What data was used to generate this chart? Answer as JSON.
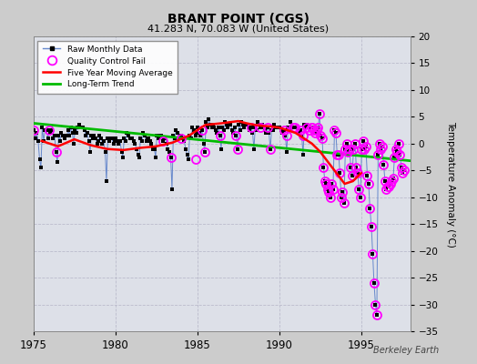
{
  "title": "BRANT POINT (CGS)",
  "subtitle": "41.283 N, 70.083 W (United States)",
  "ylabel": "Temperature Anomaly (°C)",
  "attribution": "Berkeley Earth",
  "xlim": [
    1975,
    1998
  ],
  "ylim": [
    -35,
    20
  ],
  "yticks": [
    -35,
    -30,
    -25,
    -20,
    -15,
    -10,
    -5,
    0,
    5,
    10,
    15,
    20
  ],
  "xticks": [
    1975,
    1980,
    1985,
    1990,
    1995
  ],
  "bg_color": "#e0e0e0",
  "plot_bg": "#e8eaf0",
  "grid_color": "#ffffff",
  "raw_color": "#6688cc",
  "raw_marker_color": "#000000",
  "qc_color": "#ff00ff",
  "mavg_color": "#ff0000",
  "trend_color": "#00bb00",
  "raw_x": [
    1975.04,
    1975.13,
    1975.21,
    1975.29,
    1975.38,
    1975.46,
    1975.54,
    1975.63,
    1975.71,
    1975.79,
    1975.88,
    1975.96,
    1976.04,
    1976.13,
    1976.21,
    1976.29,
    1976.38,
    1976.46,
    1976.54,
    1976.63,
    1976.71,
    1976.79,
    1976.88,
    1976.96,
    1977.04,
    1977.13,
    1977.21,
    1977.29,
    1977.38,
    1977.46,
    1977.54,
    1977.63,
    1977.71,
    1977.79,
    1977.88,
    1977.96,
    1978.04,
    1978.13,
    1978.21,
    1978.29,
    1978.38,
    1978.46,
    1978.54,
    1978.63,
    1978.71,
    1978.79,
    1978.88,
    1978.96,
    1979.04,
    1979.13,
    1979.21,
    1979.29,
    1979.38,
    1979.46,
    1979.54,
    1979.63,
    1979.71,
    1979.79,
    1979.88,
    1979.96,
    1980.04,
    1980.13,
    1980.21,
    1980.29,
    1980.38,
    1980.46,
    1980.54,
    1980.63,
    1980.71,
    1980.79,
    1980.88,
    1980.96,
    1981.04,
    1981.13,
    1981.21,
    1981.29,
    1981.38,
    1981.46,
    1981.54,
    1981.63,
    1981.71,
    1981.79,
    1981.88,
    1981.96,
    1982.04,
    1982.13,
    1982.21,
    1982.29,
    1982.38,
    1982.46,
    1982.54,
    1982.63,
    1982.71,
    1982.79,
    1982.88,
    1982.96,
    1983.04,
    1983.13,
    1983.21,
    1983.29,
    1983.38,
    1983.46,
    1983.54,
    1983.63,
    1983.71,
    1983.79,
    1983.88,
    1983.96,
    1984.04,
    1984.13,
    1984.21,
    1984.29,
    1984.38,
    1984.46,
    1984.54,
    1984.63,
    1984.71,
    1984.79,
    1984.88,
    1984.96,
    1985.04,
    1985.13,
    1985.21,
    1985.29,
    1985.38,
    1985.46,
    1985.54,
    1985.63,
    1985.71,
    1985.79,
    1985.88,
    1985.96,
    1986.04,
    1986.13,
    1986.21,
    1986.29,
    1986.38,
    1986.46,
    1986.54,
    1986.63,
    1986.71,
    1986.79,
    1986.88,
    1986.96,
    1987.04,
    1987.13,
    1987.21,
    1987.29,
    1987.38,
    1987.46,
    1987.54,
    1987.63,
    1987.71,
    1987.79,
    1987.88,
    1987.96,
    1988.04,
    1988.13,
    1988.21,
    1988.29,
    1988.38,
    1988.46,
    1988.54,
    1988.63,
    1988.71,
    1988.79,
    1988.88,
    1988.96,
    1989.04,
    1989.13,
    1989.21,
    1989.29,
    1989.38,
    1989.46,
    1989.54,
    1989.63,
    1989.71,
    1989.79,
    1989.88,
    1989.96,
    1990.04,
    1990.13,
    1990.21,
    1990.29,
    1990.38,
    1990.46,
    1990.54,
    1990.63,
    1990.71,
    1990.79,
    1990.88,
    1990.96,
    1991.04,
    1991.13,
    1991.21,
    1991.29,
    1991.38,
    1991.46,
    1991.54,
    1991.63,
    1991.71,
    1991.79,
    1991.88,
    1991.96,
    1992.04,
    1992.13,
    1992.21,
    1992.29,
    1992.38,
    1992.46,
    1992.54,
    1992.63,
    1992.71,
    1992.79,
    1992.88,
    1992.96,
    1993.04,
    1993.13,
    1993.21,
    1993.29,
    1993.38,
    1993.46,
    1993.54,
    1993.63,
    1993.71,
    1993.79,
    1993.88,
    1993.96,
    1994.04,
    1994.13,
    1994.21,
    1994.29,
    1994.38,
    1994.46,
    1994.54,
    1994.63,
    1994.71,
    1994.79,
    1994.88,
    1994.96,
    1995.04,
    1995.13,
    1995.21,
    1995.29,
    1995.38,
    1995.46,
    1995.54,
    1995.63,
    1995.71,
    1995.79,
    1995.88,
    1995.96,
    1996.04,
    1996.13,
    1996.21,
    1996.29,
    1996.38,
    1996.46,
    1996.54,
    1996.63,
    1996.71,
    1996.79,
    1996.88,
    1996.96,
    1997.04,
    1997.13,
    1997.21,
    1997.29,
    1997.38,
    1997.46,
    1997.54,
    1997.63
  ],
  "raw_y": [
    2.5,
    1.0,
    2.0,
    0.5,
    -3.0,
    -4.5,
    3.0,
    0.5,
    2.5,
    2.5,
    1.0,
    2.5,
    2.0,
    2.5,
    1.0,
    1.5,
    -1.5,
    -3.5,
    1.5,
    0.5,
    2.0,
    1.5,
    1.0,
    1.5,
    1.5,
    2.5,
    1.5,
    3.0,
    2.0,
    0.0,
    2.5,
    2.0,
    3.0,
    3.5,
    3.0,
    3.0,
    3.0,
    2.5,
    1.5,
    2.0,
    0.5,
    -1.5,
    1.5,
    1.0,
    1.5,
    1.0,
    0.0,
    0.5,
    1.5,
    1.0,
    0.0,
    0.5,
    -1.5,
    -7.0,
    1.0,
    0.5,
    1.0,
    1.0,
    0.0,
    0.5,
    1.0,
    0.5,
    0.0,
    0.5,
    -1.5,
    -2.5,
    1.0,
    0.5,
    2.0,
    1.5,
    1.0,
    1.0,
    1.0,
    0.5,
    0.0,
    -1.0,
    -2.0,
    -2.5,
    1.0,
    0.5,
    2.0,
    1.5,
    0.5,
    1.0,
    1.0,
    0.5,
    0.0,
    -1.0,
    -1.0,
    -2.5,
    1.5,
    1.0,
    1.5,
    1.5,
    0.5,
    1.0,
    1.0,
    0.0,
    -1.0,
    -1.5,
    -2.5,
    -8.5,
    1.5,
    1.0,
    2.5,
    2.0,
    1.0,
    1.5,
    1.5,
    1.0,
    0.5,
    -1.0,
    -2.0,
    -3.0,
    1.5,
    1.0,
    3.0,
    2.5,
    1.5,
    2.0,
    3.0,
    2.0,
    1.5,
    2.5,
    0.0,
    -1.5,
    4.0,
    3.0,
    4.5,
    3.5,
    3.0,
    3.5,
    3.0,
    2.5,
    2.0,
    3.0,
    1.5,
    -1.0,
    3.0,
    2.5,
    4.0,
    3.5,
    3.0,
    3.5,
    3.5,
    2.5,
    2.0,
    3.0,
    1.5,
    -1.0,
    3.5,
    2.5,
    4.0,
    3.5,
    3.0,
    3.5,
    3.5,
    3.0,
    2.5,
    3.0,
    2.0,
    -1.0,
    3.0,
    2.5,
    4.0,
    3.5,
    3.0,
    3.5,
    3.0,
    2.5,
    2.0,
    3.0,
    2.0,
    -1.0,
    2.5,
    2.5,
    3.5,
    3.0,
    3.0,
    3.0,
    3.0,
    2.5,
    2.0,
    2.5,
    1.5,
    -1.5,
    3.0,
    2.5,
    4.0,
    3.0,
    3.0,
    3.0,
    3.0,
    2.5,
    2.0,
    2.5,
    1.5,
    -2.0,
    3.5,
    3.0,
    3.5,
    3.0,
    2.5,
    3.0,
    3.0,
    2.5,
    2.0,
    2.5,
    3.0,
    5.5,
    1.5,
    1.0,
    -4.5,
    -7.0,
    -7.5,
    -8.5,
    -9.0,
    -10.0,
    -7.5,
    -8.5,
    2.5,
    2.0,
    -2.0,
    -2.0,
    -5.5,
    -10.0,
    -9.0,
    -11.0,
    -1.0,
    0.0,
    -1.5,
    -1.0,
    -4.5,
    -6.0,
    -1.0,
    0.0,
    -4.5,
    -5.5,
    -8.5,
    -10.0,
    -1.0,
    0.5,
    -1.0,
    -0.5,
    -6.0,
    -7.5,
    -12.0,
    -15.5,
    -20.5,
    -26.0,
    -30.0,
    -32.0,
    -2.0,
    0.0,
    -1.0,
    -0.5,
    -4.0,
    -7.0,
    -8.5,
    -8.0,
    -8.0,
    -7.5,
    -7.0,
    -6.5,
    -2.5,
    -1.0,
    -1.5,
    0.0,
    -2.0,
    -4.5,
    -5.5,
    -5.0
  ],
  "qc_x": [
    1975.04,
    1975.96,
    1976.38,
    1982.88,
    1983.38,
    1984.04,
    1984.88,
    1985.29,
    1985.46,
    1986.38,
    1987.38,
    1987.46,
    1988.29,
    1988.88,
    1989.29,
    1989.46,
    1990.29,
    1990.46,
    1990.88,
    1990.96,
    1991.29,
    1991.46,
    1991.71,
    1991.88,
    1991.96,
    1992.04,
    1992.13,
    1992.21,
    1992.29,
    1992.38,
    1992.46,
    1992.54,
    1992.63,
    1992.71,
    1992.79,
    1992.88,
    1992.96,
    1993.04,
    1993.13,
    1993.21,
    1993.29,
    1993.38,
    1993.46,
    1993.54,
    1993.63,
    1993.71,
    1993.79,
    1993.88,
    1993.96,
    1994.04,
    1994.13,
    1994.21,
    1994.29,
    1994.38,
    1994.46,
    1994.54,
    1994.63,
    1994.71,
    1994.79,
    1994.88,
    1994.96,
    1995.04,
    1995.13,
    1995.21,
    1995.29,
    1995.38,
    1995.46,
    1995.54,
    1995.63,
    1995.71,
    1995.79,
    1995.88,
    1995.96,
    1996.04,
    1996.13,
    1996.21,
    1996.29,
    1996.38,
    1996.46,
    1996.54,
    1996.63,
    1996.71,
    1996.79,
    1996.88,
    1996.96,
    1997.04,
    1997.13,
    1997.21,
    1997.29,
    1997.38,
    1997.46,
    1997.54,
    1997.63
  ],
  "qc_y": [
    2.5,
    2.5,
    -1.5,
    0.5,
    -2.5,
    1.0,
    -3.0,
    2.5,
    -1.5,
    1.5,
    1.5,
    -1.0,
    3.0,
    3.0,
    3.0,
    -1.0,
    2.5,
    1.5,
    3.0,
    3.0,
    2.5,
    1.5,
    3.0,
    2.5,
    3.0,
    3.0,
    2.5,
    2.0,
    2.5,
    3.0,
    5.5,
    1.5,
    1.0,
    -4.5,
    -7.0,
    -7.5,
    -8.5,
    -9.0,
    -10.0,
    -7.5,
    -8.5,
    2.5,
    2.0,
    -2.0,
    -2.0,
    -5.5,
    -10.0,
    -9.0,
    -11.0,
    -1.0,
    0.0,
    -1.5,
    -1.0,
    -4.5,
    -6.0,
    -1.0,
    0.0,
    -4.5,
    -5.5,
    -8.5,
    -10.0,
    -1.0,
    0.5,
    -1.0,
    -0.5,
    -6.0,
    -7.5,
    -12.0,
    -15.5,
    -20.5,
    -26.0,
    -30.0,
    -32.0,
    -2.0,
    0.0,
    -1.0,
    -0.5,
    -4.0,
    -7.0,
    -8.5,
    -8.0,
    -8.0,
    -7.5,
    -7.0,
    -6.5,
    -2.5,
    -1.0,
    -1.5,
    0.0,
    -2.0,
    -4.5,
    -5.5,
    -5.0
  ],
  "mavg_x": [
    1975.5,
    1976.5,
    1977.5,
    1978.5,
    1979.5,
    1980.5,
    1981.5,
    1982.5,
    1983.5,
    1984.5,
    1985.5,
    1986.5,
    1987.0,
    1987.5,
    1988.0,
    1988.5,
    1989.0,
    1989.5,
    1990.0,
    1990.5,
    1991.0,
    1991.5,
    1992.0,
    1992.5,
    1993.0,
    1993.5,
    1994.0,
    1994.5,
    1995.0
  ],
  "mavg_y": [
    0.5,
    -0.5,
    0.8,
    -0.3,
    -1.0,
    -1.2,
    -0.8,
    -0.5,
    0.2,
    1.5,
    3.5,
    3.8,
    4.0,
    4.2,
    3.8,
    3.5,
    3.3,
    3.2,
    3.0,
    2.5,
    2.0,
    1.0,
    0.0,
    -1.5,
    -3.5,
    -5.5,
    -7.5,
    -7.0,
    -5.5
  ],
  "trend_x": [
    1975.0,
    1998.0
  ],
  "trend_y": [
    3.8,
    -3.2
  ]
}
